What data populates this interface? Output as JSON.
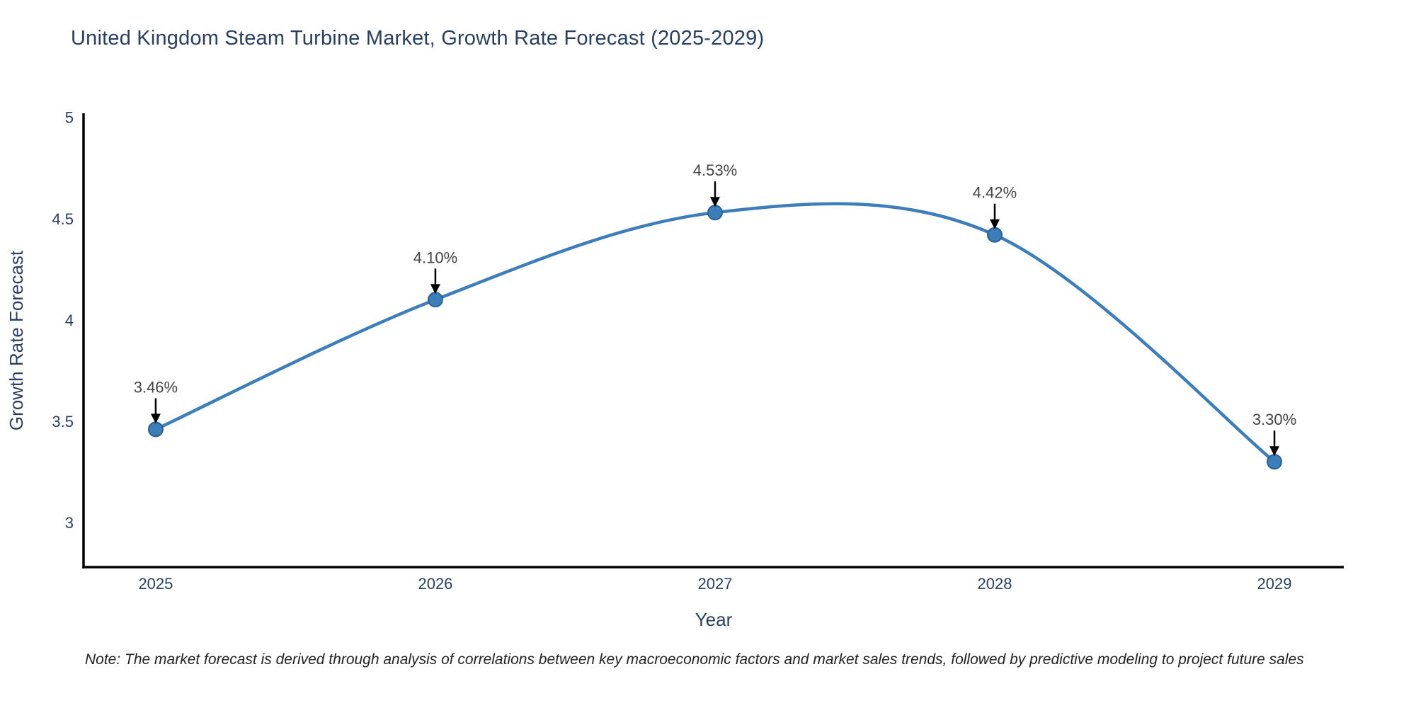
{
  "title": "United Kingdom Steam Turbine Market, Growth Rate Forecast (2025-2029)",
  "note": "Note: The market forecast is derived through analysis of correlations between key macroeconomic factors and market sales trends, followed by predictive modeling to project future sales",
  "chart_data": {
    "type": "line",
    "title": "United Kingdom Steam Turbine Market, Growth Rate Forecast (2025-2029)",
    "xlabel": "Year",
    "ylabel": "Growth Rate Forecast",
    "x": [
      2025,
      2026,
      2027,
      2028,
      2029
    ],
    "values": [
      3.46,
      4.1,
      4.53,
      4.42,
      3.3
    ],
    "point_labels": [
      "3.46%",
      "4.10%",
      "4.53%",
      "4.42%",
      "3.30%"
    ],
    "xtick_labels": [
      "2025",
      "2026",
      "2027",
      "2028",
      "2029"
    ],
    "yticks": [
      3,
      3.5,
      4,
      4.5,
      5
    ],
    "ytick_labels": [
      "3",
      "3.5",
      "4",
      "4.5",
      "5"
    ],
    "xlim": [
      2024.742,
      2029.248
    ],
    "ylim": [
      2.78,
      5.02
    ],
    "line_shape": "spline",
    "grid": false,
    "legend": "none",
    "colors": {
      "line": "#3d7eba",
      "marker_fill": "#3d7eba",
      "marker_edge": "#2b618e",
      "axis_line": "#000000",
      "tick_text": "#2a3f5f",
      "axis_title_text": "#2a3f5f",
      "annotation_text": "#444444",
      "arrow": "#000000",
      "title_text": "#2a3f5f",
      "background": "#ffffff"
    }
  }
}
